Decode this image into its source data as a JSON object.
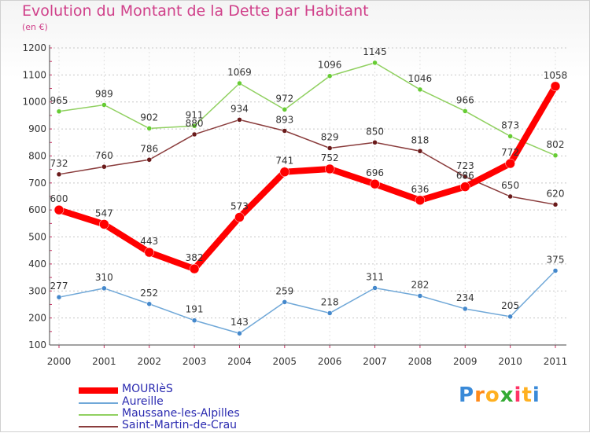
{
  "chart_data": {
    "type": "line",
    "title": "Evolution du Montant de la Dette par Habitant",
    "subtitle": "(en €)",
    "x": [
      "2000",
      "2001",
      "2002",
      "2003",
      "2004",
      "2005",
      "2006",
      "2007",
      "2008",
      "2009",
      "2010",
      "2011"
    ],
    "y_ticks": [
      "100",
      "200",
      "300",
      "400",
      "500",
      "600",
      "700",
      "800",
      "900",
      "1000",
      "1100",
      "1200"
    ],
    "ylim": [
      100,
      1200
    ],
    "grid": "horizontal dashed",
    "legend_position": "bottom-left",
    "series": [
      {
        "name": "Maussane-les-Alpilles",
        "color": "#90d060",
        "marker": "#66cc33",
        "values": [
          965,
          989,
          902,
          911,
          1069,
          972,
          1096,
          1145,
          1046,
          966,
          873,
          802
        ],
        "labels": [
          "965",
          "989",
          "902",
          "911",
          "1069",
          "972",
          "1096",
          "1145",
          "1046",
          "966",
          "873",
          "802"
        ]
      },
      {
        "name": "Saint-Martin-de-Crau",
        "color": "#8a3c3c",
        "marker": "#6a1a1a",
        "values": [
          732,
          760,
          786,
          880,
          934,
          893,
          829,
          850,
          818,
          723,
          650,
          620
        ],
        "labels": [
          "732",
          "760",
          "786",
          "880",
          "934",
          "893",
          "829",
          "850",
          "818",
          "723",
          "650",
          "620"
        ]
      },
      {
        "name": "Aureille",
        "color": "#70a8d8",
        "marker": "#4488cc",
        "values": [
          277,
          310,
          252,
          191,
          143,
          259,
          218,
          311,
          282,
          234,
          205,
          375
        ],
        "labels": [
          "277",
          "310",
          "252",
          "191",
          "143",
          "259",
          "218",
          "311",
          "282",
          "234",
          "205",
          "375"
        ]
      },
      {
        "name": "MOURIèS",
        "color": "#ff0000",
        "marker": "#ff0000",
        "values": [
          600,
          547,
          443,
          382,
          573,
          741,
          752,
          696,
          636,
          686,
          772,
          1058
        ],
        "labels": [
          "600",
          "547",
          "443",
          "382",
          "573",
          "741",
          "752",
          "696",
          "636",
          "686",
          "772",
          "1058"
        ]
      }
    ]
  },
  "legend": [
    {
      "name": "MOURIèS",
      "color": "#ff0000"
    },
    {
      "name": "Aureille",
      "color": "#70a8d8"
    },
    {
      "name": "Maussane-les-Alpilles",
      "color": "#90d060"
    },
    {
      "name": "Saint-Martin-de-Crau",
      "color": "#8a3c3c"
    }
  ],
  "logo": {
    "letters": [
      "P",
      "r",
      "o",
      "x",
      "i",
      "t",
      "i"
    ],
    "colors": [
      "#3a8ad8",
      "#ff8a1a",
      "#ffb020",
      "#33aa33",
      "#ff3366",
      "#ffb020",
      "#3a8ad8"
    ]
  }
}
